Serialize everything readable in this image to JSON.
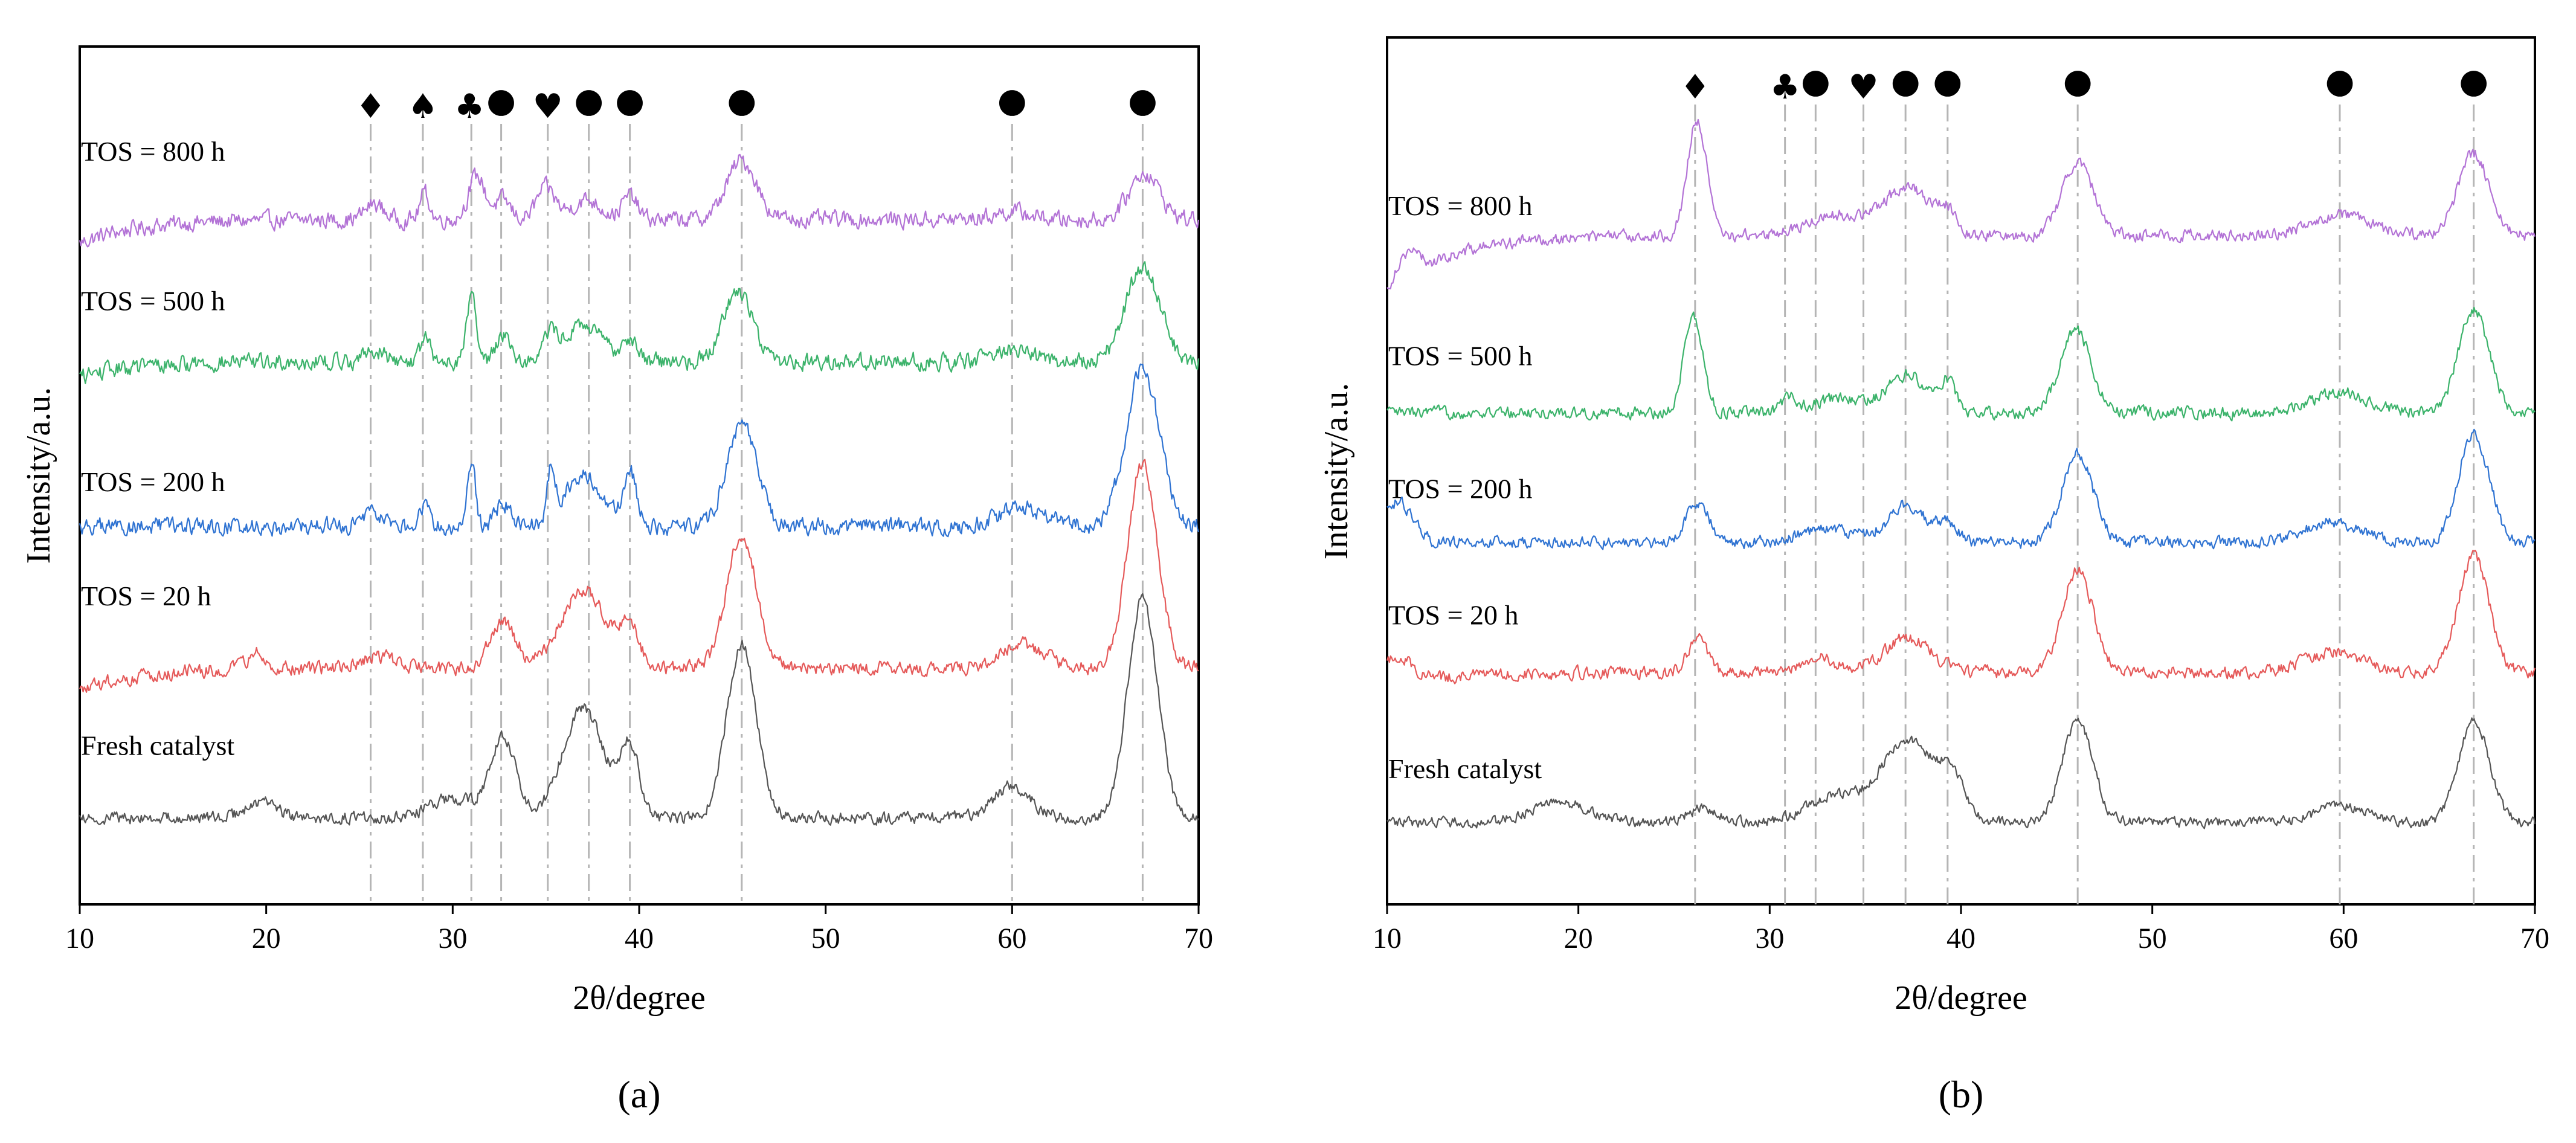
{
  "chart_data": [
    {
      "type": "line",
      "panel_caption": "(a)",
      "xlabel": "2θ/degree",
      "ylabel": "Intensity/a.u.",
      "xlim": [
        10,
        70
      ],
      "x_ticks": [
        "10",
        "20",
        "30",
        "40",
        "50",
        "60",
        "70"
      ],
      "grid": false,
      "reference_positions": [
        25.6,
        28.4,
        31.0,
        32.6,
        35.1,
        37.3,
        39.5,
        45.5,
        60.0,
        67.0
      ],
      "markers": [
        {
          "symbol": "♦",
          "x": 25.6
        },
        {
          "symbol": "♠",
          "x": 28.4
        },
        {
          "symbol": "♣",
          "x": 30.9
        },
        {
          "symbol": "●",
          "x": 32.6
        },
        {
          "symbol": "♥",
          "x": 35.1
        },
        {
          "symbol": "●",
          "x": 37.3
        },
        {
          "symbol": "●",
          "x": 39.5
        },
        {
          "symbol": "●",
          "x": 45.5
        },
        {
          "symbol": "●",
          "x": 60.0
        },
        {
          "symbol": "●",
          "x": 67.0
        }
      ],
      "series": [
        {
          "name": "TOS = 800 h",
          "color": "#b373d6",
          "baseline": 7.6,
          "noise": 0.18,
          "slope": -0.3,
          "peaks": [
            [
              25.8,
              0.2,
              0.5
            ],
            [
              28.5,
              0.35,
              0.25
            ],
            [
              31.3,
              0.55,
              0.45
            ],
            [
              32.7,
              0.25,
              0.4
            ],
            [
              35.0,
              0.4,
              0.5
            ],
            [
              37.2,
              0.25,
              0.8
            ],
            [
              39.5,
              0.3,
              0.4
            ],
            [
              45.5,
              0.75,
              0.8
            ],
            [
              60.0,
              0.1,
              1.0
            ],
            [
              67.1,
              0.6,
              0.8
            ]
          ]
        },
        {
          "name": "TOS = 500 h",
          "color": "#3cb36b",
          "baseline": 5.8,
          "noise": 0.18,
          "slope": -0.2,
          "peaks": [
            [
              25.8,
              0.15,
              0.5
            ],
            [
              28.5,
              0.3,
              0.25
            ],
            [
              31.0,
              0.85,
              0.25
            ],
            [
              32.7,
              0.35,
              0.4
            ],
            [
              35.2,
              0.3,
              0.4
            ],
            [
              37.0,
              0.45,
              1.0
            ],
            [
              39.5,
              0.3,
              0.4
            ],
            [
              45.3,
              0.9,
              0.8
            ],
            [
              60.0,
              0.15,
              1.0
            ],
            [
              67.0,
              1.2,
              0.9
            ]
          ]
        },
        {
          "name": "TOS = 200 h",
          "color": "#2f73d2",
          "baseline": 3.7,
          "noise": 0.18,
          "slope": 0.0,
          "peaks": [
            [
              25.8,
              0.2,
              0.5
            ],
            [
              28.5,
              0.25,
              0.3
            ],
            [
              31.0,
              0.85,
              0.2
            ],
            [
              32.7,
              0.3,
              0.4
            ],
            [
              35.3,
              0.7,
              0.2
            ],
            [
              37.0,
              0.65,
              1.0
            ],
            [
              39.5,
              0.7,
              0.35
            ],
            [
              45.5,
              1.3,
              0.8
            ],
            [
              60.5,
              0.25,
              1.2
            ],
            [
              67.0,
              2.0,
              0.9
            ]
          ]
        },
        {
          "name": "TOS = 20 h",
          "color": "#e55a5a",
          "baseline": 1.9,
          "noise": 0.15,
          "slope": -0.3,
          "peaks": [
            [
              19.5,
              0.2,
              0.5
            ],
            [
              26.0,
              0.15,
              1.0
            ],
            [
              32.7,
              0.6,
              0.7
            ],
            [
              37.0,
              1.0,
              1.2
            ],
            [
              39.5,
              0.55,
              0.5
            ],
            [
              45.5,
              1.7,
              0.8
            ],
            [
              60.5,
              0.3,
              1.2
            ],
            [
              67.0,
              2.6,
              0.8
            ]
          ]
        },
        {
          "name": "Fresh catalyst",
          "color": "#555555",
          "baseline": 0.0,
          "noise": 0.13,
          "slope": 0.0,
          "peaks": [
            [
              19.7,
              0.2,
              0.8
            ],
            [
              30.0,
              0.25,
              1.2
            ],
            [
              32.7,
              1.0,
              0.7
            ],
            [
              37.0,
              1.4,
              1.1
            ],
            [
              39.5,
              0.9,
              0.5
            ],
            [
              45.5,
              2.2,
              0.8
            ],
            [
              60.0,
              0.4,
              1.0
            ],
            [
              67.0,
              2.8,
              0.8
            ]
          ]
        }
      ]
    },
    {
      "type": "line",
      "panel_caption": "(b)",
      "xlabel": "2θ/degree",
      "ylabel": "Intensity/a.u.",
      "xlim": [
        10,
        70
      ],
      "x_ticks": [
        "10",
        "20",
        "30",
        "40",
        "50",
        "60",
        "70"
      ],
      "grid": false,
      "reference_positions": [
        26.1,
        30.8,
        32.4,
        34.9,
        37.1,
        39.3,
        46.1,
        59.8,
        66.8
      ],
      "markers": [
        {
          "symbol": "♦",
          "x": 26.1
        },
        {
          "symbol": "♣",
          "x": 30.8
        },
        {
          "symbol": "●",
          "x": 32.4
        },
        {
          "symbol": "♥",
          "x": 34.9
        },
        {
          "symbol": "●",
          "x": 37.1
        },
        {
          "symbol": "●",
          "x": 39.3
        },
        {
          "symbol": "●",
          "x": 46.1
        },
        {
          "symbol": "●",
          "x": 59.8
        },
        {
          "symbol": "●",
          "x": 66.8
        }
      ],
      "series": [
        {
          "name": "TOS = 800 h",
          "color": "#b373d6",
          "baseline": 8.6,
          "noise": 0.15,
          "slope": -0.9,
          "peaks": [
            [
              11.0,
              0.4,
              0.6
            ],
            [
              26.2,
              1.7,
              0.5
            ],
            [
              33.5,
              0.3,
              1.5
            ],
            [
              37.2,
              0.7,
              1.2
            ],
            [
              39.3,
              0.3,
              0.5
            ],
            [
              46.1,
              1.1,
              0.8
            ],
            [
              59.8,
              0.3,
              1.5
            ],
            [
              66.8,
              1.2,
              0.8
            ]
          ]
        },
        {
          "name": "TOS = 500 h",
          "color": "#3cb36b",
          "baseline": 6.0,
          "noise": 0.15,
          "slope": 0.0,
          "peaks": [
            [
              26.0,
              1.4,
              0.5
            ],
            [
              31.0,
              0.2,
              0.4
            ],
            [
              33.5,
              0.2,
              1.3
            ],
            [
              37.2,
              0.55,
              1.1
            ],
            [
              39.3,
              0.4,
              0.45
            ],
            [
              46.0,
              1.2,
              0.8
            ],
            [
              59.8,
              0.3,
              1.5
            ],
            [
              66.8,
              1.5,
              0.8
            ]
          ]
        },
        {
          "name": "TOS = 200 h",
          "color": "#2f73d2",
          "baseline": 4.1,
          "noise": 0.15,
          "slope": 0.0,
          "peaks": [
            [
              10.5,
              0.6,
              0.8
            ],
            [
              26.2,
              0.6,
              0.6
            ],
            [
              33.0,
              0.2,
              1.4
            ],
            [
              37.2,
              0.55,
              1.0
            ],
            [
              39.3,
              0.25,
              0.5
            ],
            [
              46.1,
              1.3,
              0.8
            ],
            [
              59.5,
              0.3,
              1.5
            ],
            [
              66.8,
              1.6,
              0.8
            ]
          ]
        },
        {
          "name": "TOS = 20 h",
          "color": "#e55a5a",
          "baseline": 2.2,
          "noise": 0.15,
          "slope": -0.2,
          "peaks": [
            [
              10.5,
              0.4,
              0.8
            ],
            [
              26.2,
              0.5,
              0.5
            ],
            [
              32.5,
              0.2,
              1.0
            ],
            [
              37.2,
              0.5,
              1.2
            ],
            [
              46.1,
              1.5,
              0.8
            ],
            [
              59.5,
              0.3,
              1.5
            ],
            [
              66.8,
              1.7,
              0.8
            ]
          ]
        },
        {
          "name": "Fresh catalyst",
          "color": "#555555",
          "baseline": 0.0,
          "noise": 0.13,
          "slope": 0.0,
          "peaks": [
            [
              19.0,
              0.3,
              1.5
            ],
            [
              26.5,
              0.2,
              0.8
            ],
            [
              33.5,
              0.4,
              1.5
            ],
            [
              37.2,
              1.2,
              1.3
            ],
            [
              39.5,
              0.6,
              0.7
            ],
            [
              46.1,
              1.5,
              0.8
            ],
            [
              59.8,
              0.25,
              1.2
            ],
            [
              66.8,
              1.5,
              0.8
            ]
          ]
        }
      ]
    }
  ]
}
